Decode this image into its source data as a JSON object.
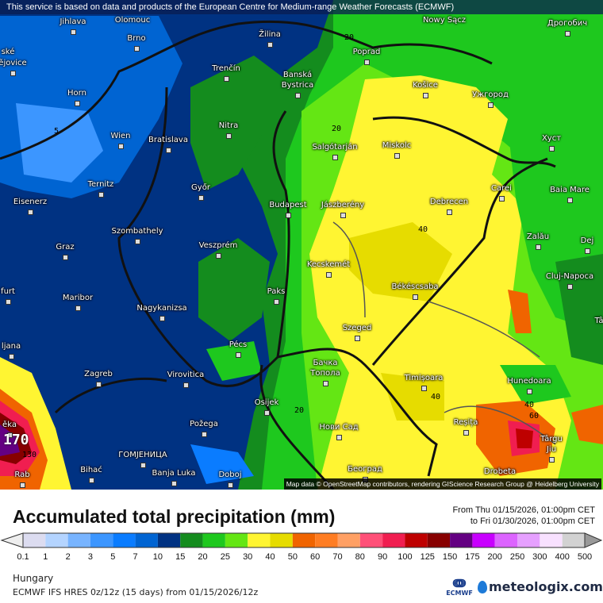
{
  "notice": "This service is based on data and products of the European Centre for Medium-range Weather Forecasts (ECMWF)",
  "attribution": "Map data © OpenStreetMap contributors, rendering GIScience Research Group @ Heidelberg University",
  "cities": [
    "Jihlava",
    "Brno",
    "Žilina",
    "Poprad",
    "Trenčín",
    "Banská",
    "Bystrica",
    "Košice",
    "Ужгород",
    "Horn",
    "Nitra",
    "Wien",
    "Bratislava",
    "Salgótarján",
    "Miskolc",
    "Хуст",
    "Ternitz",
    "Győr",
    "Budapest",
    "Jászberény",
    "Debrecen",
    "Carei",
    "Baia Mare",
    "Eisenerz",
    "Szombathely",
    "Graz",
    "Veszprém",
    "Zalău",
    "Dej",
    "Kecskemét",
    "Cluj-Napoca",
    "Békéscsaba",
    "Paks",
    "Maribor",
    "Nagykanizsa",
    "Szeged",
    "Pécs",
    "ljana",
    "Zagreb",
    "Virovitica",
    "Бачка",
    "Топола",
    "Timișoara",
    "Hunedoara",
    "Osijek",
    "ěka",
    "Požega",
    "Нови Сад",
    "Reșița",
    "Târgu",
    "Jiu",
    "ГОМЈЕНИЦА",
    "Bihać",
    "Banja Luka",
    "Doboj",
    "Београд",
    "Drobeta",
    "Rab",
    "Дрогобич",
    "ské",
    "ějovice",
    "furt",
    "Tâ",
    "Olomouc",
    "Nowy Sącz"
  ],
  "contour_labels": [
    "5",
    "20",
    "20",
    "40",
    "40",
    "40",
    "60",
    "20",
    "170",
    "130"
  ],
  "title": "Accumulated total precipitation (mm)",
  "period_from": "From Thu 01/15/2026, 01:00pm CET",
  "period_to": "to Fri 01/30/2026, 01:00pm CET",
  "legend": {
    "units": "mm",
    "ticks": [
      "0.1",
      "1",
      "2",
      "3",
      "5",
      "7",
      "10",
      "15",
      "20",
      "25",
      "30",
      "40",
      "50",
      "60",
      "70",
      "80",
      "90",
      "100",
      "125",
      "150",
      "175",
      "200",
      "250",
      "300",
      "400",
      "500"
    ],
    "colors": [
      "#dcdcf0",
      "#b4d4ff",
      "#78b4ff",
      "#3c96ff",
      "#0a7cff",
      "#0064d2",
      "#003282",
      "#148c1e",
      "#1ec81e",
      "#64e614",
      "#fff532",
      "#e6dc00",
      "#f06400",
      "#ff7d23",
      "#ffa064",
      "#ff5078",
      "#f01e50",
      "#be0000",
      "#870000",
      "#640082",
      "#c800ff",
      "#dc64ff",
      "#e6a0ff",
      "#f8e1ff",
      "#d2d2d2"
    ],
    "under_color": "#eeeeee",
    "over_color": "#999999"
  },
  "region": "Hungary",
  "model": "ECMWF IFS HRES 0z/12z (15 days) from  01/15/2026/12z",
  "logos": {
    "ecmwf": "ECMWF",
    "meteologix": "meteologix.com"
  }
}
